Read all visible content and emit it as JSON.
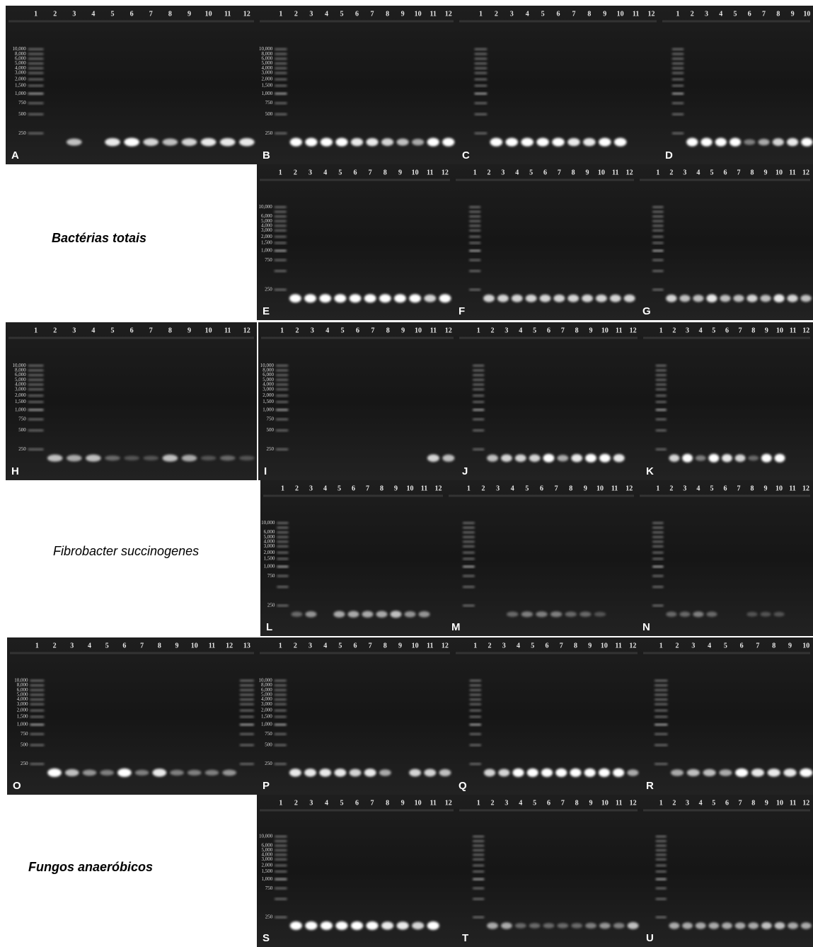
{
  "panels": [
    {
      "letter": "A",
      "lanes": [
        "1",
        "2",
        "3",
        "4",
        "5",
        "6",
        "7",
        "8",
        "9",
        "10",
        "11",
        "12"
      ],
      "ladder": [
        "10,000",
        "8,000",
        "6,000",
        "5,000",
        "4,000",
        "3,000",
        "2,000",
        "1,500",
        "1,000",
        "750",
        "500",
        "250"
      ]
    },
    {
      "letter": "B",
      "lanes": [
        "1",
        "2",
        "3",
        "4",
        "5",
        "6",
        "7",
        "8",
        "9",
        "10",
        "11",
        "12"
      ],
      "ladder": [
        "10,000",
        "8,000",
        "6,000",
        "5,000",
        "4,000",
        "3,000",
        "2,000",
        "1,500",
        "1,000",
        "750",
        "500",
        "250"
      ]
    },
    {
      "letter": "C",
      "lanes": [
        "1",
        "2",
        "3",
        "4",
        "5",
        "6",
        "7",
        "8",
        "9",
        "10",
        "11",
        "12"
      ]
    },
    {
      "letter": "D",
      "lanes": [
        "1",
        "2",
        "3",
        "4",
        "5",
        "6",
        "7",
        "8",
        "9",
        "10"
      ]
    },
    {
      "letter": "E",
      "lanes": [
        "1",
        "2",
        "3",
        "4",
        "5",
        "6",
        "7",
        "8",
        "9",
        "10",
        "11",
        "12"
      ],
      "ladder": [
        "10,000",
        "6,000",
        "5,000",
        "4,000",
        "3,000",
        "2,000",
        "1,500",
        "1,000",
        "750",
        "250"
      ]
    },
    {
      "letter": "F",
      "lanes": [
        "1",
        "2",
        "3",
        "4",
        "5",
        "6",
        "7",
        "8",
        "9",
        "10",
        "11",
        "12"
      ]
    },
    {
      "letter": "G",
      "lanes": [
        "1",
        "2",
        "3",
        "4",
        "5",
        "6",
        "7",
        "8",
        "9",
        "10",
        "11",
        "12"
      ]
    },
    {
      "letter": "H",
      "lanes": [
        "1",
        "2",
        "3",
        "4",
        "5",
        "6",
        "7",
        "8",
        "9",
        "10",
        "11",
        "12"
      ],
      "ladder": [
        "10,000",
        "8,000",
        "6,000",
        "5,000",
        "4,000",
        "3,000",
        "2,000",
        "1,500",
        "1,000",
        "750",
        "500",
        "250"
      ]
    },
    {
      "letter": "I",
      "lanes": [
        "1",
        "2",
        "3",
        "4",
        "5",
        "6",
        "7",
        "8",
        "9",
        "10",
        "11",
        "12"
      ],
      "ladder": [
        "10,000",
        "8,000",
        "6,000",
        "5,000",
        "4,000",
        "3,000",
        "2,000",
        "1,500",
        "1,000",
        "750",
        "500",
        "250"
      ]
    },
    {
      "letter": "J",
      "lanes": [
        "1",
        "2",
        "3",
        "4",
        "5",
        "6",
        "7",
        "8",
        "9",
        "10",
        "11",
        "12"
      ]
    },
    {
      "letter": "K",
      "lanes": [
        "1",
        "2",
        "3",
        "4",
        "5",
        "6",
        "7",
        "8",
        "9",
        "10",
        "11",
        "12"
      ]
    },
    {
      "letter": "L",
      "lanes": [
        "1",
        "2",
        "3",
        "4",
        "5",
        "6",
        "7",
        "8",
        "9",
        "10",
        "11",
        "12"
      ],
      "ladder": [
        "10,000",
        "6,000",
        "5,000",
        "4,000",
        "3,000",
        "2,000",
        "1,500",
        "1,000",
        "750",
        "250"
      ]
    },
    {
      "letter": "M",
      "lanes": [
        "1",
        "2",
        "3",
        "4",
        "5",
        "6",
        "7",
        "8",
        "9",
        "10",
        "11",
        "12"
      ]
    },
    {
      "letter": "N",
      "lanes": [
        "1",
        "2",
        "3",
        "4",
        "5",
        "6",
        "7",
        "8",
        "9",
        "10",
        "11",
        "12"
      ]
    },
    {
      "letter": "O",
      "lanes": [
        "1",
        "2",
        "3",
        "4",
        "5",
        "6",
        "7",
        "8",
        "9",
        "10",
        "11",
        "12",
        "13"
      ],
      "ladder": [
        "10,000",
        "8,000",
        "6,000",
        "5,000",
        "4,000",
        "3,000",
        "2,000",
        "1,500",
        "1,000",
        "750",
        "500",
        "250"
      ]
    },
    {
      "letter": "P",
      "lanes": [
        "1",
        "2",
        "3",
        "4",
        "5",
        "6",
        "7",
        "8",
        "9",
        "10",
        "11",
        "12"
      ],
      "ladder": [
        "10,000",
        "8,000",
        "6,000",
        "5,000",
        "4,000",
        "3,000",
        "2,000",
        "1,500",
        "1,000",
        "750",
        "500",
        "250"
      ]
    },
    {
      "letter": "Q",
      "lanes": [
        "1",
        "2",
        "3",
        "4",
        "5",
        "6",
        "7",
        "8",
        "9",
        "10",
        "11",
        "12"
      ]
    },
    {
      "letter": "R",
      "lanes": [
        "1",
        "2",
        "3",
        "4",
        "5",
        "6",
        "7",
        "8",
        "9",
        "10"
      ]
    },
    {
      "letter": "S",
      "lanes": [
        "1",
        "2",
        "3",
        "4",
        "5",
        "6",
        "7",
        "8",
        "9",
        "10",
        "11",
        "12"
      ],
      "ladder": [
        "10,000",
        "6,000",
        "5,000",
        "4,000",
        "3,000",
        "2,000",
        "1,500",
        "1,000",
        "750",
        "250"
      ]
    },
    {
      "letter": "T",
      "lanes": [
        "1",
        "2",
        "3",
        "4",
        "5",
        "6",
        "7",
        "8",
        "9",
        "10",
        "11",
        "12"
      ]
    },
    {
      "letter": "U",
      "lanes": [
        "1",
        "2",
        "3",
        "4",
        "5",
        "6",
        "7",
        "8",
        "9",
        "10",
        "11",
        "12"
      ]
    }
  ],
  "sections": [
    {
      "label": "Bactérias totais"
    },
    {
      "label": "Fibrobacter succinogenes"
    },
    {
      "label": "Fungos anaeróbicos"
    }
  ]
}
